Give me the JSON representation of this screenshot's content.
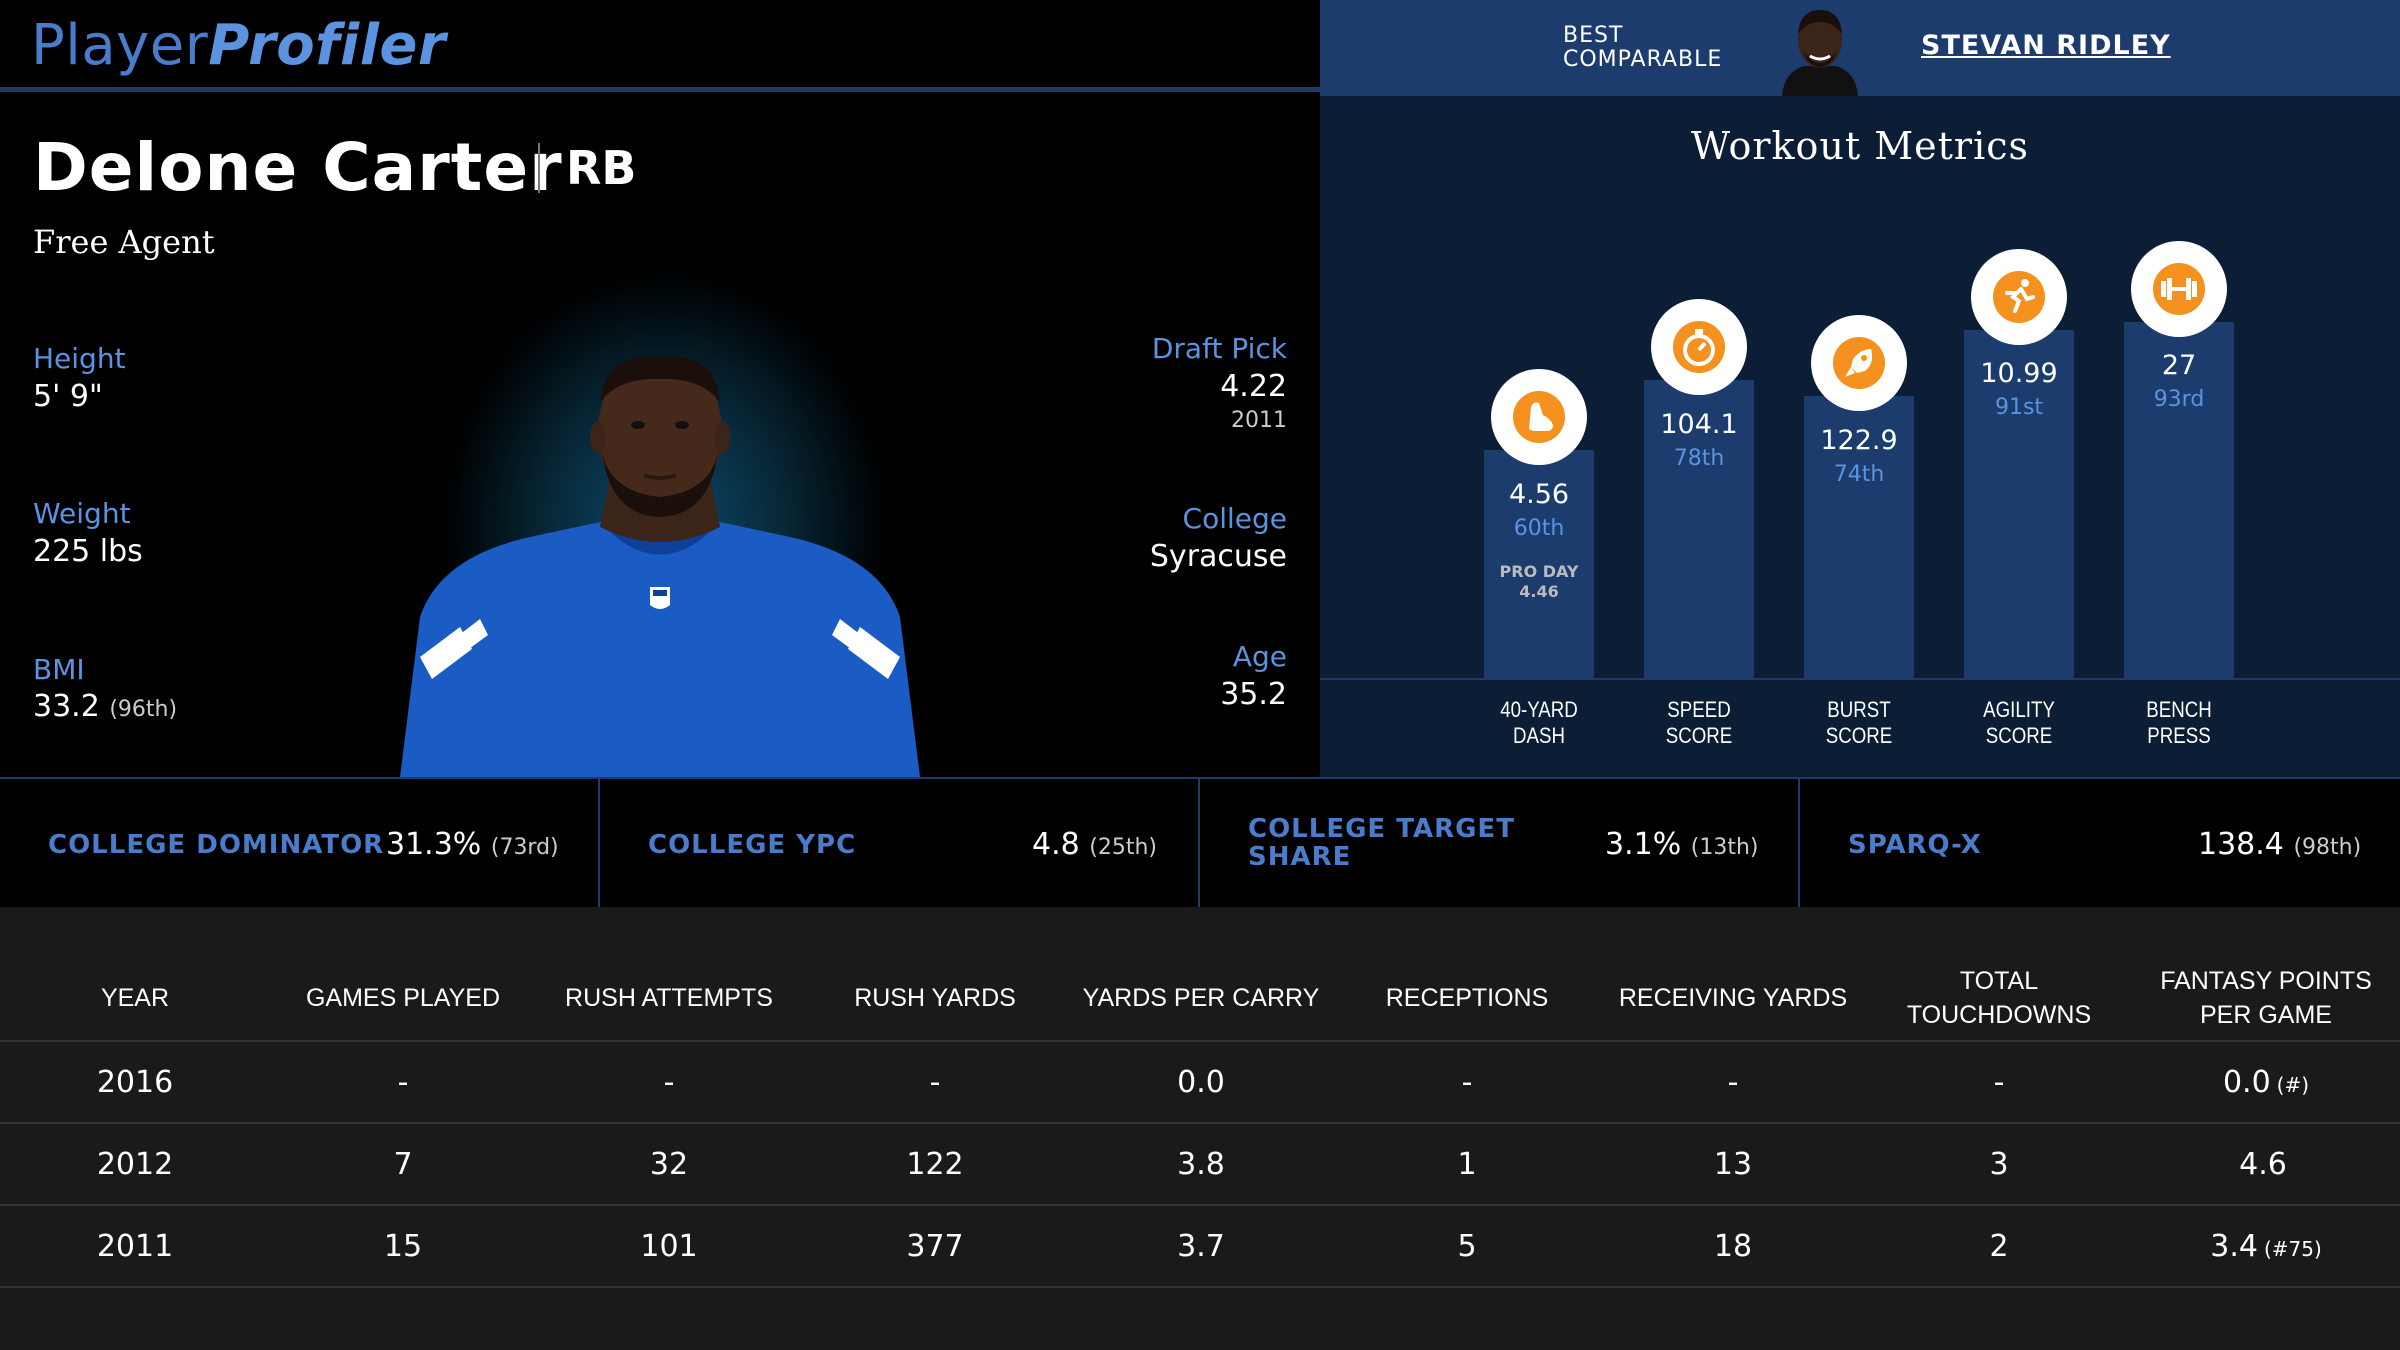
{
  "header": {
    "logo_part1": "Player",
    "logo_part2": "Profiler",
    "best_comparable_label_1": "BEST",
    "best_comparable_label_2": "COMPARABLE",
    "best_comparable_name": "STEVAN RIDLEY"
  },
  "player": {
    "name": "Delone Carter",
    "position": "RB",
    "team": "Free Agent",
    "height_label": "Height",
    "height": "5' 9\"",
    "weight_label": "Weight",
    "weight": "225 lbs",
    "bmi_label": "BMI",
    "bmi": "33.2",
    "bmi_rank": "(96th)",
    "draft_label": "Draft Pick",
    "draft_pick": "4.22",
    "draft_year": "2011",
    "college_label": "College",
    "college": "Syracuse",
    "age_label": "Age",
    "age": "35.2"
  },
  "workout": {
    "title": "Workout Metrics",
    "metrics": [
      {
        "label1": "40-YARD",
        "label2": "DASH",
        "value": "4.56",
        "percentile": "60th",
        "extra1": "PRO DAY",
        "extra2": "4.46",
        "icon": "shoe-icon",
        "pct": 60
      },
      {
        "label1": "SPEED",
        "label2": "SCORE",
        "value": "104.1",
        "percentile": "78th",
        "icon": "stopwatch-icon",
        "pct": 78
      },
      {
        "label1": "BURST",
        "label2": "SCORE",
        "value": "122.9",
        "percentile": "74th",
        "icon": "rocket-icon",
        "pct": 74
      },
      {
        "label1": "AGILITY",
        "label2": "SCORE",
        "value": "10.99",
        "percentile": "91st",
        "icon": "runner-icon",
        "pct": 91
      },
      {
        "label1": "BENCH",
        "label2": "PRESS",
        "value": "27",
        "percentile": "93rd",
        "icon": "dumbbell-icon",
        "pct": 93
      }
    ]
  },
  "college_stats": [
    {
      "label": "COLLEGE DOMINATOR",
      "value": "31.3%",
      "rank": "(73rd)"
    },
    {
      "label": "COLLEGE YPC",
      "value": "4.8",
      "rank": "(25th)"
    },
    {
      "label1": "COLLEGE TARGET",
      "label2": "SHARE",
      "value": "3.1%",
      "rank": "(13th)"
    },
    {
      "label": "SPARQ-X",
      "value": "138.4",
      "rank": "(98th)"
    }
  ],
  "table": {
    "headers": [
      "YEAR",
      "GAMES PLAYED",
      "RUSH ATTEMPTS",
      "RUSH YARDS",
      "YARDS PER CARRY",
      "RECEPTIONS",
      "RECEIVING YARDS",
      "TOTAL TOUCHDOWNS",
      "FANTASY POINTS PER GAME"
    ],
    "rows": [
      [
        "2016",
        "-",
        "-",
        "-",
        "0.0",
        "-",
        "-",
        "-",
        "0.0",
        "(#)"
      ],
      [
        "2012",
        "7",
        "32",
        "122",
        "3.8",
        "1",
        "13",
        "3",
        "4.6",
        ""
      ],
      [
        "2011",
        "15",
        "101",
        "377",
        "3.7",
        "5",
        "18",
        "2",
        "3.4",
        "(#75)"
      ]
    ]
  }
}
